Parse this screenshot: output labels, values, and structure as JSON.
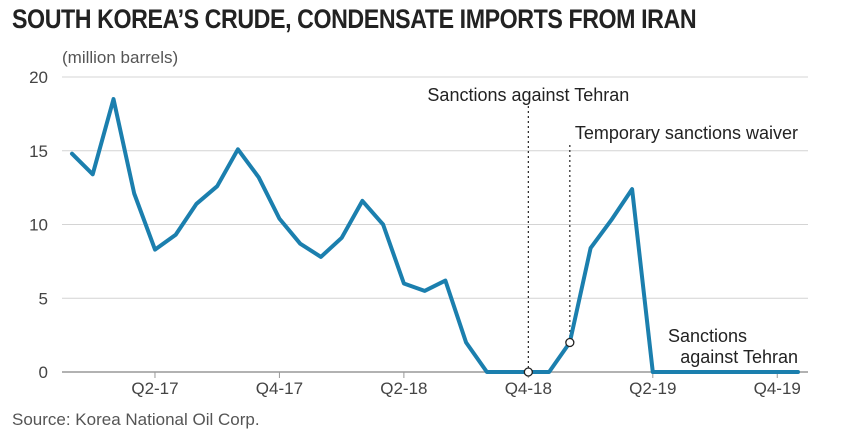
{
  "chart_data": {
    "type": "line",
    "title": "SOUTH KOREA’S CRUDE, CONDENSATE IMPORTS FROM IRAN",
    "ylabel": "(million barrels)",
    "xlabel": "",
    "ylim": [
      0,
      20
    ],
    "yticks": [
      0,
      5,
      10,
      15,
      20
    ],
    "grid": "horizontal",
    "legend": "none",
    "x_range": [
      "Jan 2017",
      "Dec 2019"
    ],
    "xtick_labels": [
      {
        "label": "Q2-17",
        "x": "May 2017"
      },
      {
        "label": "Q4-17",
        "x": "Nov 2017"
      },
      {
        "label": "Q2-18",
        "x": "May 2018"
      },
      {
        "label": "Q4-18",
        "x": "Nov 2018"
      },
      {
        "label": "Q2-19",
        "x": "May 2019"
      },
      {
        "label": "Q4-19",
        "x": "Nov 2019"
      }
    ],
    "color": "#1b7fae",
    "series": [
      {
        "name": "",
        "x": [
          "Jan 2017",
          "Feb 2017",
          "Mar 2017",
          "Apr 2017",
          "May 2017",
          "Jun 2017",
          "Jul 2017",
          "Aug 2017",
          "Sep 2017",
          "Oct 2017",
          "Nov 2017",
          "Dec 2017",
          "Jan 2018",
          "Feb 2018",
          "Mar 2018",
          "Apr 2018",
          "May 2018",
          "Jun 2018",
          "Jul 2018",
          "Aug 2018",
          "Sep 2018",
          "Oct 2018",
          "Nov 2018",
          "Dec 2018",
          "Jan 2019",
          "Feb 2019",
          "Mar 2019",
          "Apr 2019",
          "May 2019",
          "Jun 2019",
          "Jul 2019",
          "Aug 2019",
          "Sep 2019",
          "Oct 2019",
          "Nov 2019",
          "Dec 2019"
        ],
        "values": [
          14.8,
          13.4,
          18.5,
          12.1,
          8.3,
          9.3,
          11.4,
          12.6,
          15.1,
          13.2,
          10.4,
          8.7,
          7.8,
          9.1,
          11.6,
          10.0,
          6.0,
          5.5,
          6.2,
          2.0,
          0.0,
          0.0,
          0.0,
          0.0,
          2.0,
          8.4,
          10.3,
          12.4,
          0.0,
          0.0,
          0.0,
          0.0,
          0.0,
          0.0,
          0.0,
          0.0
        ]
      }
    ],
    "annotations": [
      {
        "text": "Sanctions against Tehran",
        "x": "Nov 2018",
        "y": 0,
        "marker": true,
        "dotted_line": true
      },
      {
        "text": "Temporary sanctions waiver",
        "x": "Jan 2019",
        "y": 2.0,
        "marker": true,
        "dotted_line": true
      },
      {
        "text_lines": [
          "Sanctions",
          "against Tehran"
        ],
        "x": "Nov 2019",
        "y": 0,
        "marker": false,
        "dotted_line": false
      }
    ],
    "source": "Source: Korea National Oil Corp."
  }
}
